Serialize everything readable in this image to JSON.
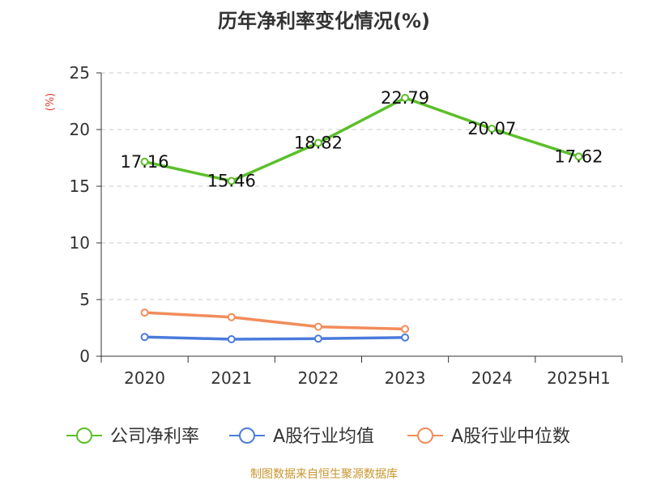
{
  "chart_data": {
    "type": "line",
    "title": "历年净利率变化情况(%)",
    "ylabel": "(%)",
    "xlabel": "",
    "categories": [
      "2020",
      "2021",
      "2022",
      "2023",
      "2024",
      "2025H1"
    ],
    "ylim": [
      0,
      25
    ],
    "yticks": [
      0,
      5,
      10,
      15,
      20,
      25
    ],
    "grid": true,
    "legend_position": "bottom",
    "series": [
      {
        "name": "公司净利率",
        "values": [
          17.16,
          15.46,
          18.82,
          22.79,
          20.07,
          17.62
        ],
        "labels": [
          "17.16",
          "15.46",
          "18.82",
          "22.79",
          "20.07",
          "17.62"
        ],
        "color": "#5cbf2a",
        "show_labels": true
      },
      {
        "name": "A股行业均值",
        "values": [
          1.7,
          1.5,
          1.55,
          1.65,
          null,
          null
        ],
        "color": "#4a7bdc",
        "show_labels": false
      },
      {
        "name": "A股行业中位数",
        "values": [
          3.85,
          3.45,
          2.6,
          2.4,
          null,
          null
        ],
        "color": "#f28c5a",
        "show_labels": false
      }
    ],
    "source": "制图数据来自恒生聚源数据库"
  },
  "colors": {
    "axis": "#333333",
    "grid": "#c8c8c8",
    "ylabel": "#e03c3c",
    "source": "#c8962e",
    "title": "#333333"
  }
}
